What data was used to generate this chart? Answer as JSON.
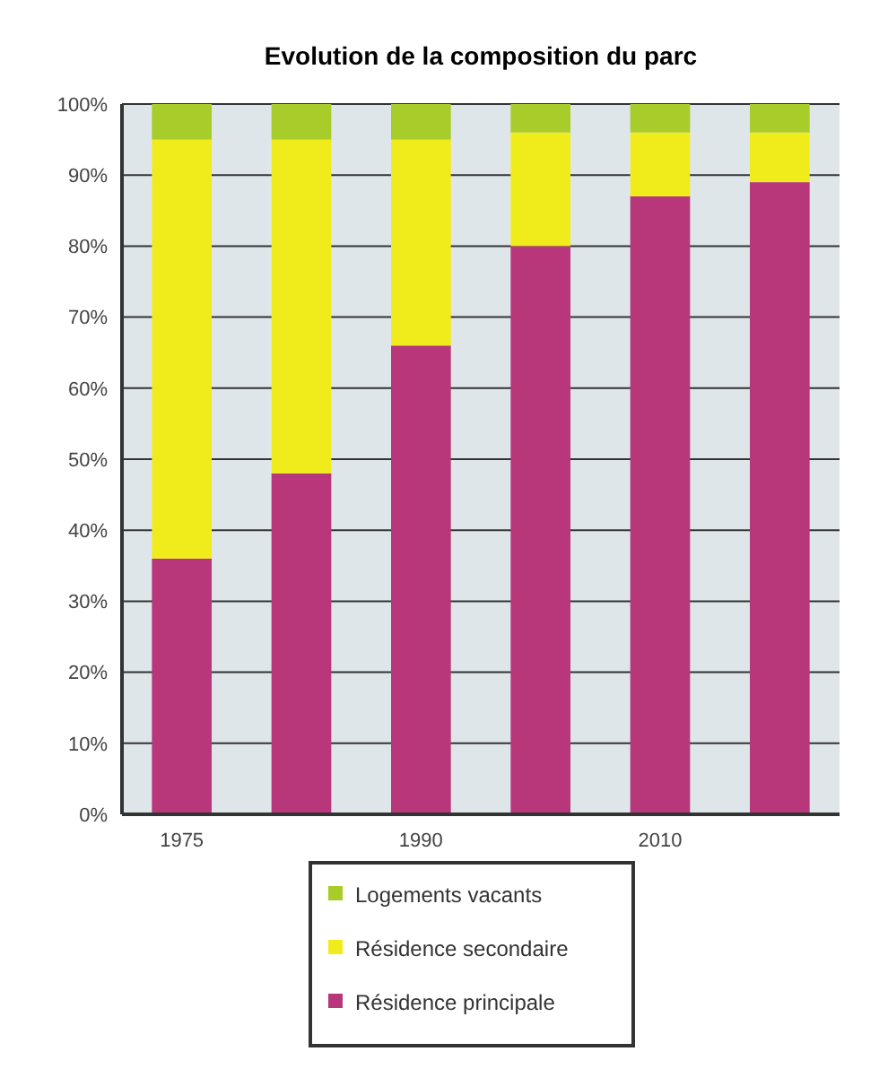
{
  "chart_data": {
    "type": "bar",
    "stacked": true,
    "title": "Evolution de la composition du parc",
    "categories": [
      "1975",
      null,
      "1990",
      null,
      "2010",
      null
    ],
    "series": [
      {
        "name": "Résidence principale",
        "color": "#b8377a",
        "values": [
          36,
          48,
          66,
          80,
          87,
          89
        ]
      },
      {
        "name": "Résidence secondaire",
        "color": "#f0ec1c",
        "values": [
          59,
          47,
          29,
          16,
          9,
          7
        ]
      },
      {
        "name": "Logements vacants",
        "color": "#a8cc2a",
        "values": [
          5,
          5,
          5,
          4,
          4,
          4
        ]
      }
    ],
    "ylim": [
      0,
      100
    ],
    "yticks": [
      {
        "value": 0,
        "label": "0%"
      },
      {
        "value": 10,
        "label": "10%"
      },
      {
        "value": 20,
        "label": "20%"
      },
      {
        "value": 30,
        "label": "30%"
      },
      {
        "value": 40,
        "label": "40%"
      },
      {
        "value": 50,
        "label": "50%"
      },
      {
        "value": 60,
        "label": "60%"
      },
      {
        "value": 70,
        "label": "70%"
      },
      {
        "value": 80,
        "label": "80%"
      },
      {
        "value": 90,
        "label": "90%"
      },
      {
        "value": 100,
        "label": "100%"
      }
    ],
    "grid": "y",
    "legend": "bottom"
  }
}
